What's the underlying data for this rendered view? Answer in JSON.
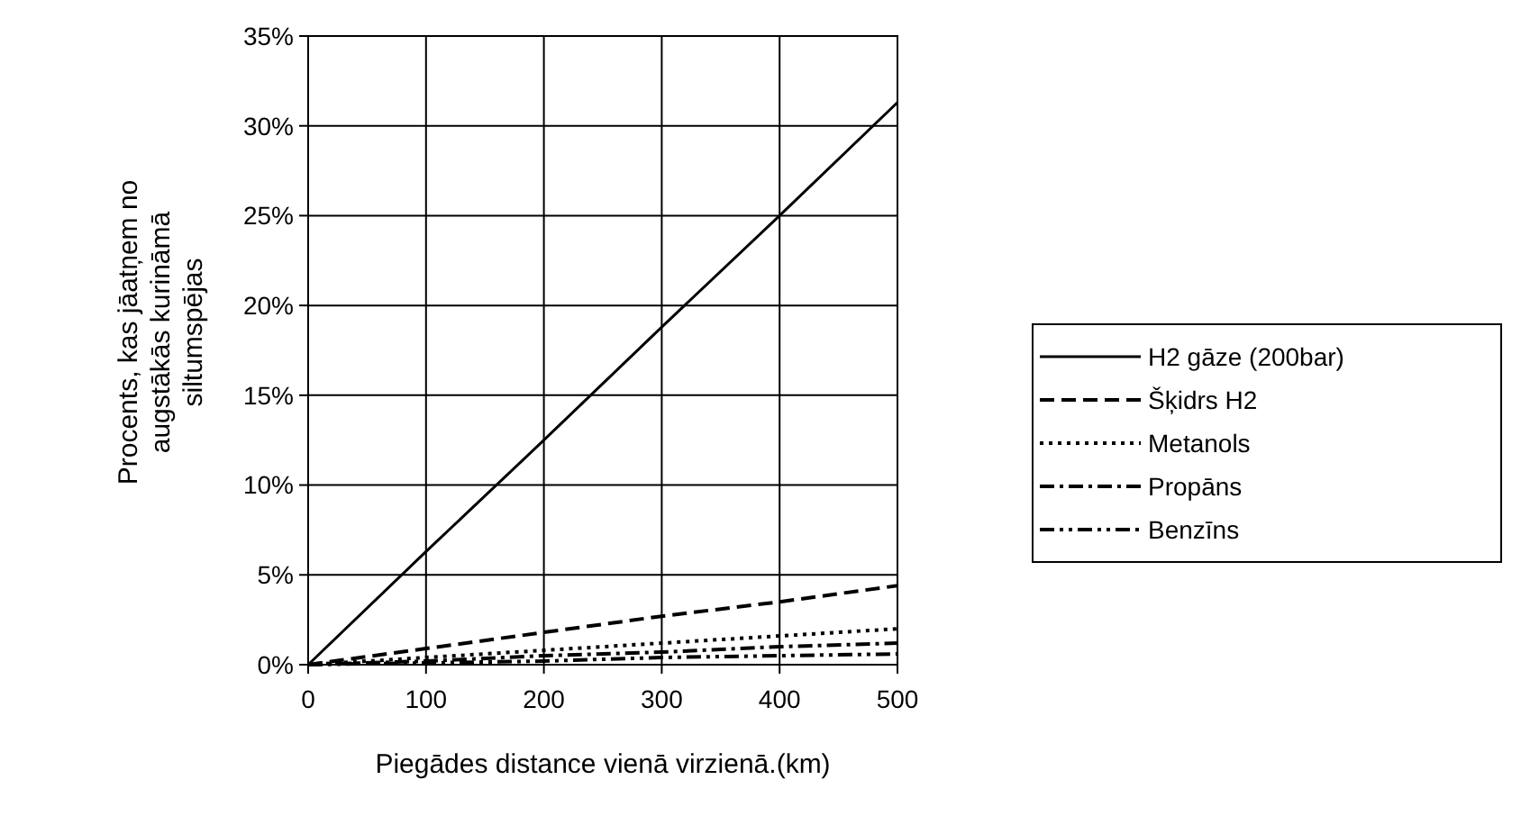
{
  "chart_data": {
    "type": "line",
    "xlabel": "Piegādes distance vienā virzienā.(km)",
    "ylabel": "Procents, kas jāatņem no\naugstākās kurināmā\nsiltumspējas",
    "x": [
      0,
      100,
      200,
      300,
      400,
      500
    ],
    "series": [
      {
        "name": "H2 gāze (200bar)",
        "color": "#000000",
        "line_style": "solid",
        "values": [
          0,
          6.3,
          12.5,
          18.8,
          25,
          31.3
        ]
      },
      {
        "name": "Šķidrs H2",
        "color": "#000000",
        "line_style": "dashed",
        "values": [
          0,
          0.9,
          1.8,
          2.7,
          3.5,
          4.4
        ]
      },
      {
        "name": "Metanols",
        "color": "#000000",
        "line_style": "dotted",
        "values": [
          0,
          0.4,
          0.8,
          1.2,
          1.6,
          2.0
        ]
      },
      {
        "name": "Propāns",
        "color": "#000000",
        "line_style": "dashdot",
        "values": [
          0,
          0.2,
          0.5,
          0.7,
          1.0,
          1.2
        ]
      },
      {
        "name": "Benzīns",
        "color": "#000000",
        "line_style": "dashdotdot",
        "values": [
          0,
          0.1,
          0.2,
          0.4,
          0.5,
          0.6
        ]
      }
    ],
    "xlim": [
      0,
      500
    ],
    "xticks": [
      0,
      100,
      200,
      300,
      400,
      500
    ],
    "ylim": [
      0,
      35
    ],
    "yticks": [
      {
        "value": 0,
        "label": "0%"
      },
      {
        "value": 5,
        "label": "5%"
      },
      {
        "value": 10,
        "label": "10%"
      },
      {
        "value": 15,
        "label": "15%"
      },
      {
        "value": 20,
        "label": "20%"
      },
      {
        "value": 25,
        "label": "25%"
      },
      {
        "value": 30,
        "label": "30%"
      },
      {
        "value": 35,
        "label": "35%"
      }
    ],
    "grid": true,
    "legend": "right"
  }
}
